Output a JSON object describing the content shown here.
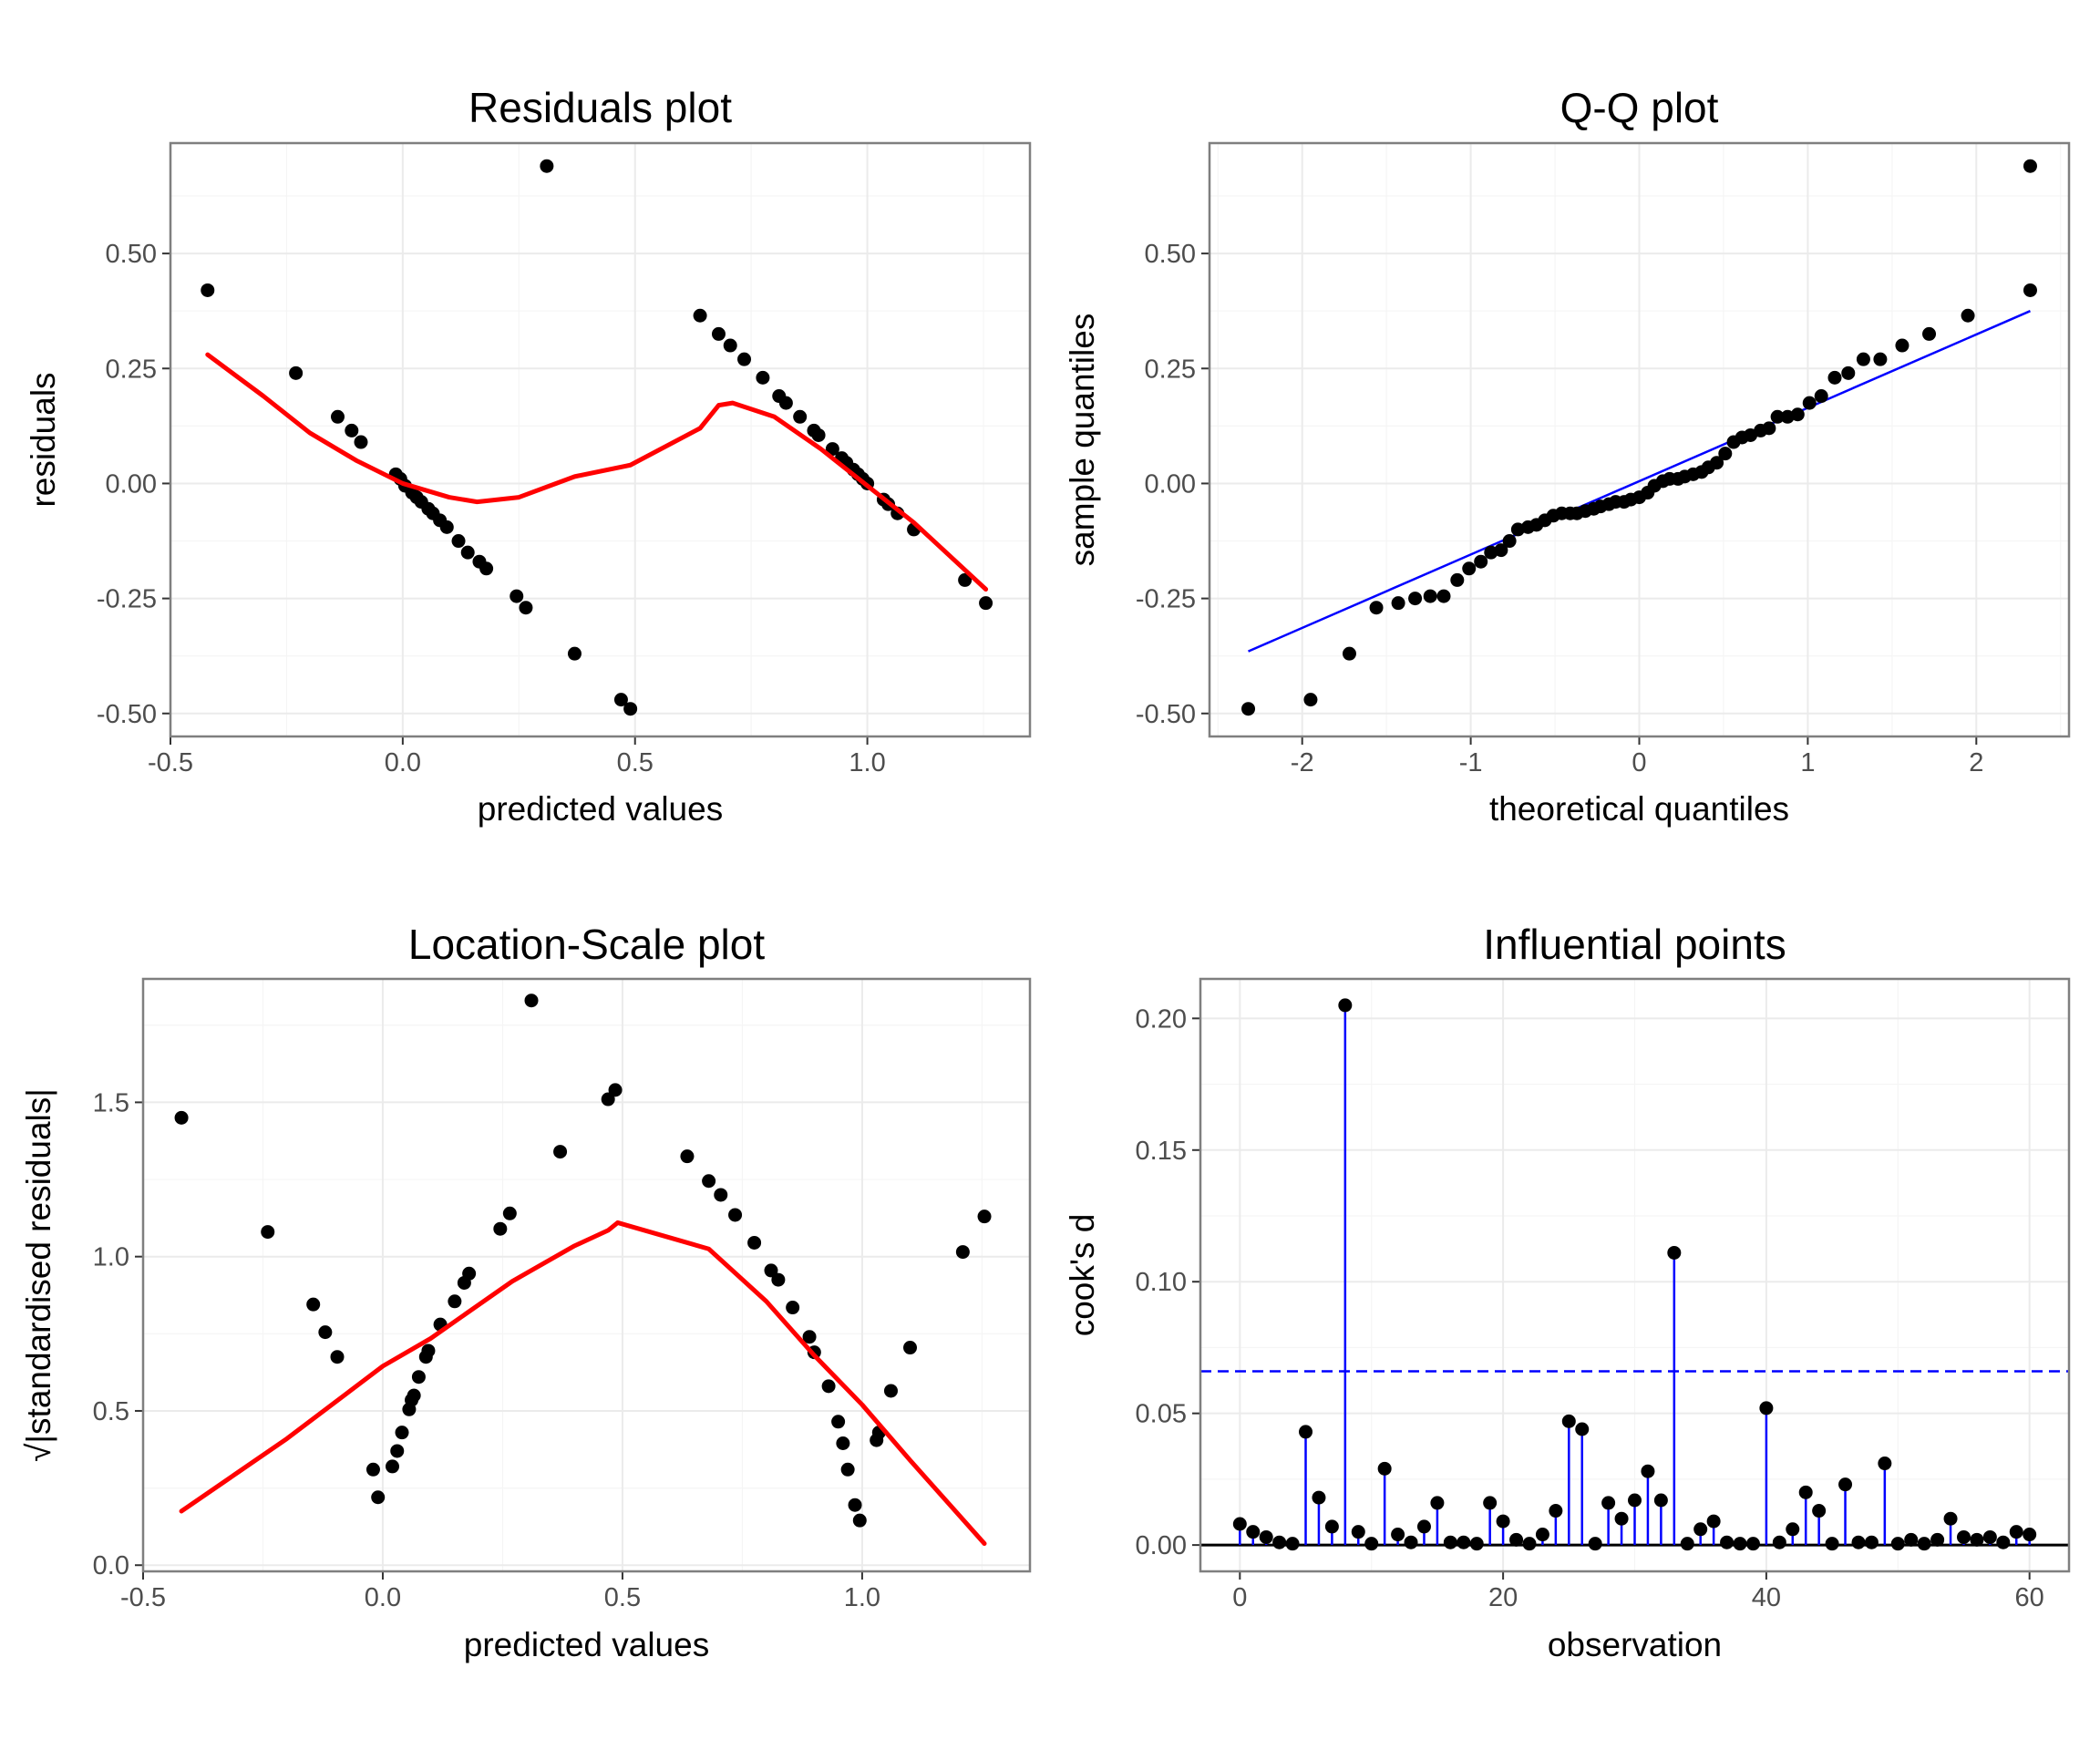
{
  "chart_data": [
    {
      "type": "scatter",
      "id": "residuals",
      "title": "Residuals plot",
      "xlabel": "predicted values",
      "ylabel": "residuals",
      "xlim": [
        -0.5,
        1.35
      ],
      "ylim": [
        -0.55,
        0.74
      ],
      "xticks": [
        -0.5,
        0.0,
        0.5,
        1.0
      ],
      "xtick_labels": [
        "-0.5",
        "0.0",
        "0.5",
        "1.0"
      ],
      "yticks": [
        -0.5,
        -0.25,
        0.0,
        0.25,
        0.5
      ],
      "ytick_labels": [
        "-0.50",
        "-0.25",
        "0.00",
        "0.25",
        "0.50"
      ],
      "grid": true,
      "points": [
        [
          -0.42,
          0.42
        ],
        [
          -0.23,
          0.24
        ],
        [
          -0.14,
          0.145
        ],
        [
          -0.11,
          0.115
        ],
        [
          -0.09,
          0.09
        ],
        [
          -0.015,
          0.02
        ],
        [
          -0.005,
          0.01
        ],
        [
          0.005,
          -0.005
        ],
        [
          0.02,
          -0.02
        ],
        [
          0.03,
          -0.03
        ],
        [
          0.04,
          -0.04
        ],
        [
          0.055,
          -0.055
        ],
        [
          0.065,
          -0.065
        ],
        [
          0.08,
          -0.08
        ],
        [
          0.095,
          -0.095
        ],
        [
          0.12,
          -0.125
        ],
        [
          0.14,
          -0.15
        ],
        [
          0.165,
          -0.17
        ],
        [
          0.18,
          -0.185
        ],
        [
          0.245,
          -0.245
        ],
        [
          0.265,
          -0.27
        ],
        [
          0.37,
          -0.37
        ],
        [
          0.47,
          -0.47
        ],
        [
          0.49,
          -0.49
        ],
        [
          0.31,
          0.69
        ],
        [
          0.64,
          0.365
        ],
        [
          0.68,
          0.325
        ],
        [
          0.705,
          0.3
        ],
        [
          0.735,
          0.27
        ],
        [
          0.775,
          0.23
        ],
        [
          0.81,
          0.19
        ],
        [
          0.825,
          0.175
        ],
        [
          0.855,
          0.145
        ],
        [
          0.885,
          0.115
        ],
        [
          0.895,
          0.105
        ],
        [
          0.925,
          0.075
        ],
        [
          0.945,
          0.055
        ],
        [
          0.955,
          0.045
        ],
        [
          0.97,
          0.03
        ],
        [
          0.98,
          0.02
        ],
        [
          0.99,
          0.01
        ],
        [
          1.0,
          0.0
        ],
        [
          1.035,
          -0.035
        ],
        [
          1.045,
          -0.045
        ],
        [
          1.065,
          -0.065
        ],
        [
          1.1,
          -0.1
        ],
        [
          1.21,
          -0.21
        ],
        [
          1.255,
          -0.26
        ]
      ],
      "smooth": [
        [
          -0.42,
          0.28
        ],
        [
          -0.3,
          0.19
        ],
        [
          -0.2,
          0.11
        ],
        [
          -0.1,
          0.05
        ],
        [
          0.0,
          0.0
        ],
        [
          0.1,
          -0.03
        ],
        [
          0.16,
          -0.04
        ],
        [
          0.25,
          -0.03
        ],
        [
          0.37,
          0.015
        ],
        [
          0.49,
          0.04
        ],
        [
          0.64,
          0.12
        ],
        [
          0.68,
          0.17
        ],
        [
          0.71,
          0.175
        ],
        [
          0.8,
          0.145
        ],
        [
          0.9,
          0.075
        ],
        [
          1.0,
          -0.005
        ],
        [
          1.1,
          -0.085
        ],
        [
          1.255,
          -0.23
        ]
      ],
      "point_color": "#000000",
      "smooth_color": "#ff0000"
    },
    {
      "type": "scatter",
      "id": "qq",
      "title": "Q-Q plot",
      "xlabel": "theoretical quantiles",
      "ylabel": "sample quantiles",
      "xlim": [
        -2.55,
        2.55
      ],
      "ylim": [
        -0.55,
        0.74
      ],
      "xticks": [
        -2,
        -1,
        0,
        1,
        2
      ],
      "xtick_labels": [
        "-2",
        "-1",
        "0",
        "1",
        "2"
      ],
      "yticks": [
        -0.5,
        -0.25,
        0.0,
        0.25,
        0.5
      ],
      "ytick_labels": [
        "-0.50",
        "-0.25",
        "0.00",
        "0.25",
        "0.50"
      ],
      "grid": true,
      "points": [
        [
          -2.32,
          -0.49
        ],
        [
          -1.95,
          -0.47
        ],
        [
          -1.72,
          -0.37
        ],
        [
          -1.56,
          -0.27
        ],
        [
          -1.43,
          -0.26
        ],
        [
          -1.33,
          -0.25
        ],
        [
          -1.24,
          -0.245
        ],
        [
          -1.16,
          -0.245
        ],
        [
          -1.08,
          -0.21
        ],
        [
          -1.01,
          -0.185
        ],
        [
          -0.94,
          -0.17
        ],
        [
          -0.88,
          -0.15
        ],
        [
          -0.82,
          -0.145
        ],
        [
          -0.77,
          -0.125
        ],
        [
          -0.72,
          -0.1
        ],
        [
          -0.66,
          -0.095
        ],
        [
          -0.61,
          -0.09
        ],
        [
          -0.56,
          -0.08
        ],
        [
          -0.51,
          -0.07
        ],
        [
          -0.46,
          -0.065
        ],
        [
          -0.41,
          -0.065
        ],
        [
          -0.37,
          -0.065
        ],
        [
          -0.32,
          -0.06
        ],
        [
          -0.27,
          -0.055
        ],
        [
          -0.23,
          -0.05
        ],
        [
          -0.18,
          -0.045
        ],
        [
          -0.14,
          -0.04
        ],
        [
          -0.09,
          -0.04
        ],
        [
          -0.05,
          -0.035
        ],
        [
          0.0,
          -0.03
        ],
        [
          0.05,
          -0.02
        ],
        [
          0.09,
          -0.005
        ],
        [
          0.14,
          0.005
        ],
        [
          0.18,
          0.01
        ],
        [
          0.23,
          0.01
        ],
        [
          0.27,
          0.015
        ],
        [
          0.32,
          0.02
        ],
        [
          0.37,
          0.025
        ],
        [
          0.41,
          0.035
        ],
        [
          0.46,
          0.045
        ],
        [
          0.51,
          0.065
        ],
        [
          0.56,
          0.09
        ],
        [
          0.61,
          0.1
        ],
        [
          0.66,
          0.105
        ],
        [
          0.72,
          0.115
        ],
        [
          0.77,
          0.12
        ],
        [
          0.82,
          0.145
        ],
        [
          0.88,
          0.145
        ],
        [
          0.94,
          0.15
        ],
        [
          1.01,
          0.175
        ],
        [
          1.08,
          0.19
        ],
        [
          1.16,
          0.23
        ],
        [
          1.24,
          0.24
        ],
        [
          1.33,
          0.27
        ],
        [
          1.43,
          0.27
        ],
        [
          1.56,
          0.3
        ],
        [
          1.72,
          0.325
        ],
        [
          1.95,
          0.365
        ],
        [
          2.32,
          0.42
        ],
        [
          2.32,
          0.69
        ]
      ],
      "reference_line": [
        [
          -2.32,
          -0.365
        ],
        [
          2.32,
          0.375
        ]
      ],
      "point_color": "#000000",
      "line_color": "#0000ff"
    },
    {
      "type": "scatter",
      "id": "location-scale",
      "title": "Location-Scale plot",
      "xlabel": "predicted values",
      "ylabel": "√|standardised residuals|",
      "xlim": [
        -0.5,
        1.35
      ],
      "ylim": [
        -0.02,
        1.9
      ],
      "xticks": [
        -0.5,
        0.0,
        0.5,
        1.0
      ],
      "xtick_labels": [
        "-0.5",
        "0.0",
        "0.5",
        "1.0"
      ],
      "yticks": [
        0.0,
        0.5,
        1.0,
        1.5
      ],
      "ytick_labels": [
        "0.0",
        "0.5",
        "1.0",
        "1.5"
      ],
      "grid": true,
      "points": [
        [
          -0.42,
          1.45
        ],
        [
          -0.24,
          1.08
        ],
        [
          -0.145,
          0.845
        ],
        [
          -0.12,
          0.755
        ],
        [
          -0.095,
          0.675
        ],
        [
          -0.02,
          0.31
        ],
        [
          -0.01,
          0.22
        ],
        [
          0.02,
          0.32
        ],
        [
          0.03,
          0.37
        ],
        [
          0.04,
          0.43
        ],
        [
          0.055,
          0.505
        ],
        [
          0.06,
          0.535
        ],
        [
          0.065,
          0.55
        ],
        [
          0.075,
          0.61
        ],
        [
          0.09,
          0.675
        ],
        [
          0.095,
          0.695
        ],
        [
          0.12,
          0.78
        ],
        [
          0.15,
          0.855
        ],
        [
          0.17,
          0.915
        ],
        [
          0.18,
          0.945
        ],
        [
          0.245,
          1.09
        ],
        [
          0.265,
          1.14
        ],
        [
          0.37,
          1.34
        ],
        [
          0.47,
          1.51
        ],
        [
          0.485,
          1.54
        ],
        [
          0.31,
          1.83
        ],
        [
          0.635,
          1.325
        ],
        [
          0.68,
          1.245
        ],
        [
          0.705,
          1.2
        ],
        [
          0.735,
          1.135
        ],
        [
          0.775,
          1.045
        ],
        [
          0.81,
          0.955
        ],
        [
          0.825,
          0.925
        ],
        [
          0.855,
          0.835
        ],
        [
          0.89,
          0.74
        ],
        [
          0.9,
          0.69
        ],
        [
          0.93,
          0.58
        ],
        [
          0.95,
          0.465
        ],
        [
          0.96,
          0.395
        ],
        [
          0.97,
          0.31
        ],
        [
          0.985,
          0.195
        ],
        [
          0.995,
          0.145
        ],
        [
          1.03,
          0.405
        ],
        [
          1.035,
          0.43
        ],
        [
          1.06,
          0.565
        ],
        [
          1.1,
          0.705
        ],
        [
          1.21,
          1.015
        ],
        [
          1.255,
          1.13
        ]
      ],
      "smooth": [
        [
          -0.42,
          0.175
        ],
        [
          -0.2,
          0.41
        ],
        [
          0.0,
          0.645
        ],
        [
          0.1,
          0.735
        ],
        [
          0.27,
          0.92
        ],
        [
          0.4,
          1.035
        ],
        [
          0.47,
          1.085
        ],
        [
          0.49,
          1.11
        ],
        [
          0.68,
          1.025
        ],
        [
          0.8,
          0.855
        ],
        [
          0.9,
          0.68
        ],
        [
          1.0,
          0.52
        ],
        [
          1.1,
          0.34
        ],
        [
          1.255,
          0.07
        ]
      ],
      "point_color": "#000000",
      "smooth_color": "#ff0000"
    },
    {
      "type": "stem",
      "id": "cooks",
      "title": "Influential points",
      "xlabel": "observation",
      "ylabel": "cook's d",
      "xlim": [
        -3,
        63
      ],
      "ylim": [
        -0.01,
        0.215
      ],
      "xticks": [
        0,
        20,
        40,
        60
      ],
      "xtick_labels": [
        "0",
        "20",
        "40",
        "60"
      ],
      "yticks": [
        0.0,
        0.05,
        0.1,
        0.15,
        0.2
      ],
      "ytick_labels": [
        "0.00",
        "0.05",
        "0.10",
        "0.15",
        "0.20"
      ],
      "grid": true,
      "threshold": 0.066,
      "x": [
        0,
        1,
        2,
        3,
        4,
        5,
        6,
        7,
        8,
        9,
        10,
        11,
        12,
        13,
        14,
        15,
        16,
        17,
        18,
        19,
        20,
        21,
        22,
        23,
        24,
        25,
        26,
        27,
        28,
        29,
        30,
        31,
        32,
        33,
        34,
        35,
        36,
        37,
        38,
        39,
        40,
        41,
        42,
        43,
        44,
        45,
        46,
        47,
        48,
        49,
        50,
        51,
        52,
        53,
        54,
        55,
        56,
        57,
        58,
        59,
        60
      ],
      "values": [
        0.008,
        0.005,
        0.003,
        0.001,
        0.0005,
        0.043,
        0.018,
        0.007,
        0.205,
        0.005,
        0.0005,
        0.029,
        0.004,
        0.001,
        0.007,
        0.016,
        0.001,
        0.001,
        0.0005,
        0.016,
        0.009,
        0.002,
        0.0005,
        0.004,
        0.013,
        0.047,
        0.044,
        0.0005,
        0.016,
        0.01,
        0.017,
        0.028,
        0.017,
        0.111,
        0.0005,
        0.006,
        0.009,
        0.001,
        0.0005,
        0.0005,
        0.052,
        0.001,
        0.006,
        0.02,
        0.013,
        0.0005,
        0.023,
        0.001,
        0.001,
        0.031,
        0.0005,
        0.002,
        0.0005,
        0.002,
        0.01,
        0.003,
        0.002,
        0.003,
        0.001,
        0.005,
        0.004
      ],
      "stem_color": "#0000ff",
      "point_color": "#000000",
      "threshold_color": "#0000ff"
    }
  ]
}
